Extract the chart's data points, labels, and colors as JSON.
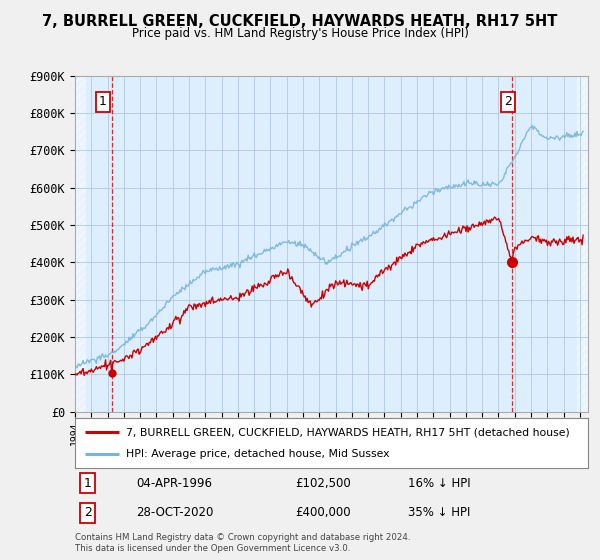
{
  "title": "7, BURRELL GREEN, CUCKFIELD, HAYWARDS HEATH, RH17 5HT",
  "subtitle": "Price paid vs. HM Land Registry's House Price Index (HPI)",
  "ylim": [
    0,
    900000
  ],
  "yticks": [
    0,
    100000,
    200000,
    300000,
    400000,
    500000,
    600000,
    700000,
    800000,
    900000
  ],
  "ytick_labels": [
    "£0",
    "£100K",
    "£200K",
    "£300K",
    "£400K",
    "£500K",
    "£600K",
    "£700K",
    "£800K",
    "£900K"
  ],
  "hpi_color": "#7ab4d8",
  "price_color": "#cc0000",
  "marker_color": "#cc0000",
  "bg_color": "#f0f0f0",
  "plot_bg": "#ddeeff",
  "grid_color": "#b0c8e0",
  "legend_label_price": "7, BURRELL GREEN, CUCKFIELD, HAYWARDS HEATH, RH17 5HT (detached house)",
  "legend_label_hpi": "HPI: Average price, detached house, Mid Sussex",
  "annotation1_label": "1",
  "annotation1_date": "04-APR-1996",
  "annotation1_price": "£102,500",
  "annotation1_hpi": "16% ↓ HPI",
  "annotation2_label": "2",
  "annotation2_date": "28-OCT-2020",
  "annotation2_price": "£400,000",
  "annotation2_hpi": "35% ↓ HPI",
  "copyright": "Contains HM Land Registry data © Crown copyright and database right 2024.\nThis data is licensed under the Open Government Licence v3.0.",
  "sale1_x": 1996.27,
  "sale1_y": 102500,
  "sale2_x": 2020.83,
  "sale2_y": 400000,
  "xmin": 1994.0,
  "xmax": 2025.5
}
